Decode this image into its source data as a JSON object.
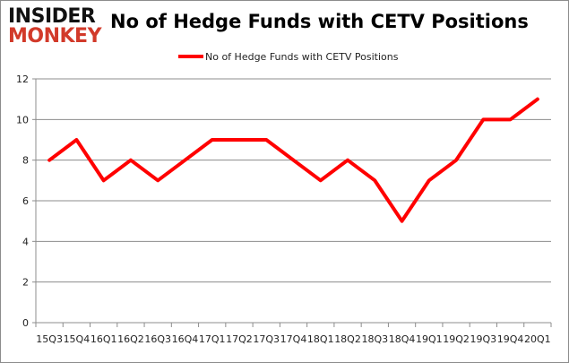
{
  "logo": {
    "line1": "INSIDER",
    "line2": "MONKEY"
  },
  "chart_data": {
    "type": "line",
    "title": "No of Hedge Funds with CETV Positions",
    "categories": [
      "15Q3",
      "15Q4",
      "16Q1",
      "16Q2",
      "16Q3",
      "16Q4",
      "17Q1",
      "17Q2",
      "17Q3",
      "17Q4",
      "18Q1",
      "18Q2",
      "18Q3",
      "18Q4",
      "19Q1",
      "19Q2",
      "19Q3",
      "19Q4",
      "20Q1"
    ],
    "series": [
      {
        "name": "No of Hedge Funds with CETV Positions",
        "values": [
          8,
          9,
          7,
          8,
          7,
          8,
          9,
          9,
          9,
          8,
          7,
          8,
          7,
          5,
          7,
          8,
          10,
          10,
          11
        ],
        "color": "#ff0000"
      }
    ],
    "ylim": [
      0,
      12
    ],
    "yticks": [
      0,
      2,
      4,
      6,
      8,
      10,
      12
    ],
    "grid": true,
    "legend": "top-center"
  }
}
